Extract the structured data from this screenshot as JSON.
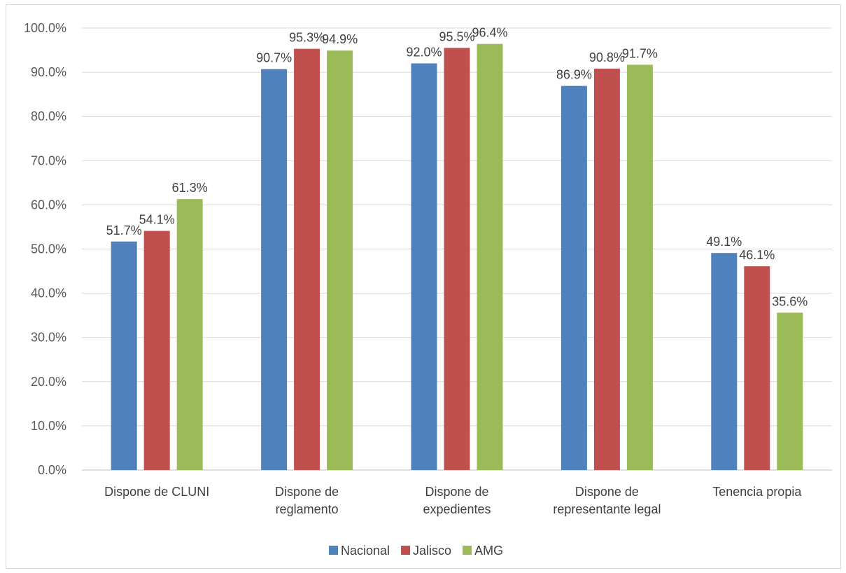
{
  "chart_data": {
    "type": "bar",
    "categories": [
      [
        "Dispone de CLUNI"
      ],
      [
        "Dispone de",
        "reglamento"
      ],
      [
        "Dispone de",
        "expedientes"
      ],
      [
        "Dispone de",
        "representante legal"
      ],
      [
        "Tenencia propia"
      ]
    ],
    "series": [
      {
        "name": "Nacional",
        "color": "#4f81bd",
        "values": [
          51.7,
          90.7,
          92.0,
          86.9,
          49.1
        ],
        "labels": [
          "51.7%",
          "90.7%",
          "92.0%",
          "86.9%",
          "49.1%"
        ]
      },
      {
        "name": "Jalisco",
        "color": "#c0504d",
        "values": [
          54.1,
          95.3,
          95.5,
          90.8,
          46.1
        ],
        "labels": [
          "54.1%",
          "95.3%",
          "95.5%",
          "90.8%",
          "46.1%"
        ]
      },
      {
        "name": "AMG",
        "color": "#9bbb59",
        "values": [
          61.3,
          94.9,
          96.4,
          91.7,
          35.6
        ],
        "labels": [
          "61.3%",
          "94.9%",
          "96.4%",
          "91.7%",
          "35.6%"
        ]
      }
    ],
    "ylim": [
      0,
      100
    ],
    "yticks": [
      "0.0%",
      "10.0%",
      "20.0%",
      "30.0%",
      "40.0%",
      "50.0%",
      "60.0%",
      "70.0%",
      "80.0%",
      "90.0%",
      "100.0%"
    ],
    "grid": true,
    "legend": "bottom"
  }
}
